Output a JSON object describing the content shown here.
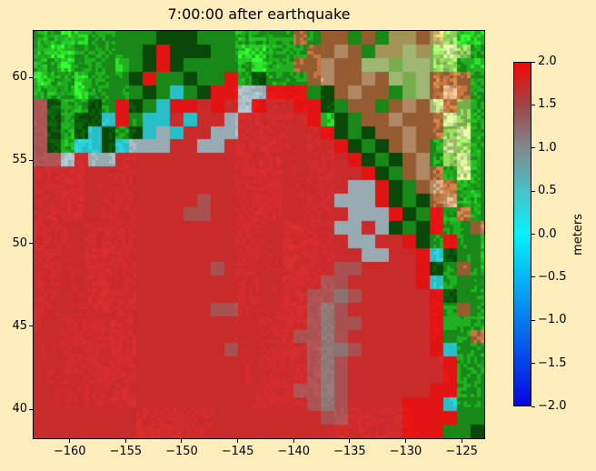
{
  "window": {
    "background": "#ffedbb"
  },
  "title": "7:00:00 after earthquake",
  "chart_data": {
    "type": "heatmap",
    "title": "7:00:00 after earthquake",
    "xlabel": "",
    "ylabel": "",
    "xlim": [
      -163.3,
      -122.9
    ],
    "ylim": [
      38.2,
      62.85
    ],
    "grid": false,
    "legend_position": "none",
    "x_ticks": [
      -160,
      -155,
      -150,
      -145,
      -140,
      -135,
      -130,
      -125
    ],
    "x_tick_labels": [
      "−160",
      "−155",
      "−150",
      "−145",
      "−140",
      "−135",
      "−130",
      "−125"
    ],
    "y_ticks": [
      60,
      55,
      50,
      45,
      40
    ],
    "y_tick_labels": [
      "60",
      "55",
      "50",
      "45",
      "40"
    ],
    "colorbar": {
      "label": "meters",
      "range": [
        -2.0,
        2.0
      ],
      "tick_values": [
        2.0,
        1.5,
        1.0,
        0.5,
        0.0,
        -0.5,
        -1.0,
        -1.5,
        -2.0
      ],
      "tick_labels": [
        "2.0",
        "1.5",
        "1.0",
        "0.5",
        "0.0",
        "−0.5",
        "−1.0",
        "−1.5",
        "−2.0"
      ],
      "gradient_stops": [
        [
          0,
          "#f60606"
        ],
        [
          12.5,
          "#9e4646"
        ],
        [
          25,
          "#7e8a8e"
        ],
        [
          37.5,
          "#48c2ca"
        ],
        [
          50,
          "#06f2fa"
        ],
        [
          100,
          "#0606e2"
        ]
      ]
    },
    "grid_cols": 33,
    "grid_rows": 30,
    "palette": {
      ".": "#d42c2c",
      "r": "#ee1414",
      "m": "#b25454",
      "w": "#927a76",
      "s": "#a9bec6",
      "c": "#2cd4de",
      "g": "#1fae1f",
      "d": "#0b5c0b",
      "b": "#2ce22c",
      "l": "#9ade64",
      "y": "#cdeb94",
      "k": "#d2bc6e",
      "t": "#c0763f",
      "p": "#e2ae80"
    },
    "cells": [
      "ggbbgggggdddgggggggtgttgtgkktklbb",
      "gbbgggggdrdddggbbgggttptgkkyklylg",
      "ggbgggbgdrdgggggbggttpttyylyyllgb",
      "bggbgggdrggdggrgdgggtpttptylytttg",
      "gggbggggdgcgdrrssrrrgdtpttglytptg",
      "mdggdgrdgcrr.r.sr..rrdgttgtptytlg",
      "mdgddcrgcc.c..s.....rbdgttptttylg",
      "mdgdcdgdcsc..ss......rdgdttpttlyg",
      "mdgccdcsss..ss........rdgdtptgylg",
      "mms.ss.................rdgdtpglyg",
      "........................rdgtptgyg",
      ".......................ssrdgtptgg",
      "............m.........sssrdgdtpgg",
      "...........mm..........sssrdgrgtg",
      "......................ss.sdgdrggt",
      ".......................ss..rdgrgg",
      "........................ss..rcdgg",
      ".............m........mm....rdgtg",
      ".....................mm.....rcggg",
      "....................mmwm.....rdgg",
      ".............mm.....mwm......rgtg",
      "....................mwmm.....rbgg",
      "...................mmwm......rggt",
      "..............m.....mwwm.....rcgg",
      "....................mwm.......rgg",
      "....................mwm.......rgg",
      "...................mmwm......rrgg",
      "....................mwm....rrrcgg",
      ".....................mm....rrrrgg",
      "...........................rrrggd"
    ]
  }
}
